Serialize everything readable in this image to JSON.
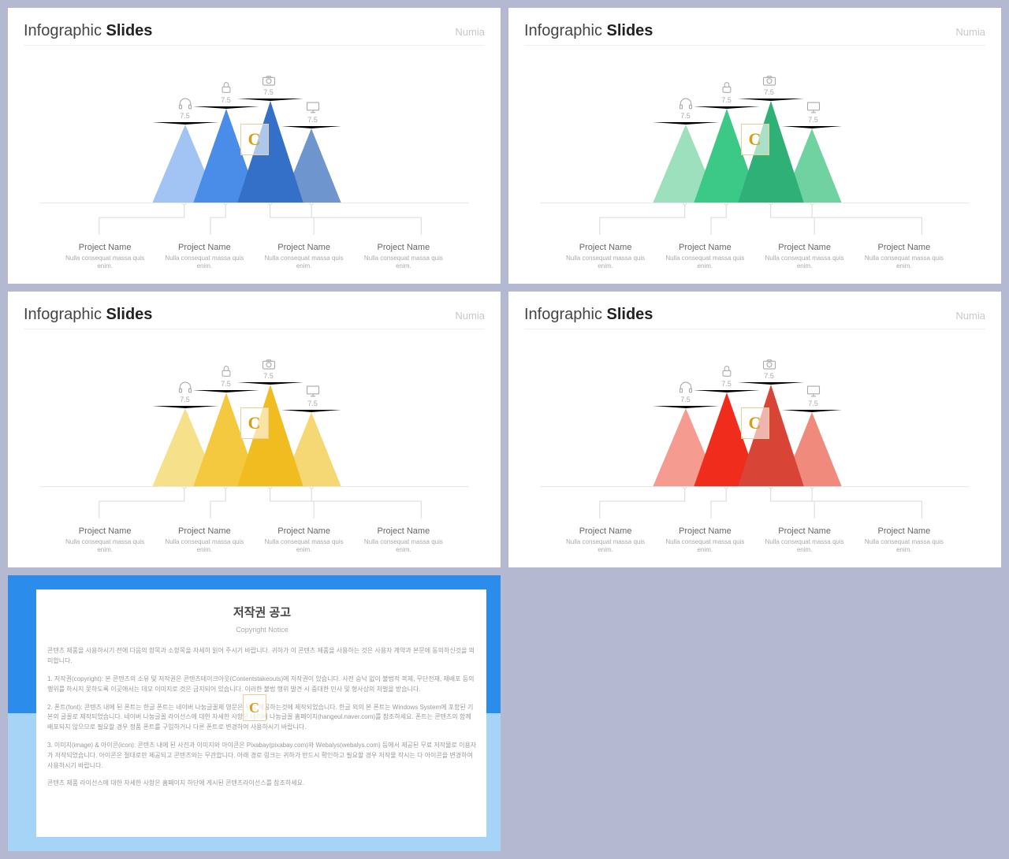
{
  "brand": "Numia",
  "title_prefix": "Infographic",
  "title_bold": "Slides",
  "watermark_letter": "C",
  "icons": [
    {
      "name": "headphones-icon",
      "value": "7.5"
    },
    {
      "name": "lock-icon",
      "value": "7.5"
    },
    {
      "name": "camera-icon",
      "value": "7.5"
    },
    {
      "name": "monitor-icon",
      "value": "7.5"
    }
  ],
  "labels": [
    {
      "title": "Project Name",
      "sub": "Nulla consequat massa quis enim."
    },
    {
      "title": "Project Name",
      "sub": "Nulla consequat massa quis enim."
    },
    {
      "title": "Project Name",
      "sub": "Nulla consequat massa quis enim."
    },
    {
      "title": "Project Name",
      "sub": "Nulla consequat massa quis enim."
    }
  ],
  "slides": [
    {
      "triangle_colors": [
        "#a2c4f5",
        "#4a8de8",
        "#3570c8",
        "#6f95cf"
      ],
      "triangle_heights": [
        100,
        120,
        130,
        95
      ],
      "triangle_widths": [
        42,
        42,
        42,
        38
      ],
      "triangle_x": [
        0,
        52,
        108,
        164
      ]
    },
    {
      "triangle_colors": [
        "#9de0be",
        "#3cc988",
        "#2fb076",
        "#6fd2a0"
      ],
      "triangle_heights": [
        100,
        120,
        130,
        95
      ],
      "triangle_widths": [
        42,
        42,
        42,
        38
      ],
      "triangle_x": [
        0,
        52,
        108,
        164
      ]
    },
    {
      "triangle_colors": [
        "#f7e08a",
        "#f5c93f",
        "#f0bc20",
        "#f5d873"
      ],
      "triangle_heights": [
        100,
        120,
        130,
        95
      ],
      "triangle_widths": [
        42,
        42,
        42,
        38
      ],
      "triangle_x": [
        0,
        52,
        108,
        164
      ]
    },
    {
      "triangle_colors": [
        "#f59b8f",
        "#f02d1c",
        "#d84435",
        "#f08a7d"
      ],
      "triangle_heights": [
        100,
        120,
        130,
        95
      ],
      "triangle_widths": [
        42,
        42,
        42,
        38
      ],
      "triangle_x": [
        0,
        52,
        108,
        164
      ]
    }
  ],
  "icon_positions_x": [
    34,
    86,
    140,
    196
  ],
  "icon_positions_y": [
    28,
    8,
    2,
    34
  ],
  "connector_color": "#d8d8d8",
  "label_title_color": "#666666",
  "label_sub_color": "#aaaaaa",
  "background_color": "#b4b8d0",
  "slide_bg": "#ffffff",
  "copyright": {
    "title": "저작권 공고",
    "subtitle": "Copyright Notice",
    "border_top_color": "#2b8ceb",
    "border_bottom_color": "#a6d4f7",
    "paragraphs": [
      "콘텐츠 제품을 사용하시기 전에 다음의 항목과 소항목을 자세히 읽어 주시기 바랍니다. 귀하가 이 콘텐츠 제품을 사용하는 것은 사용자 계약과 본문에 동의하신것을 의미합니다.",
      "1. 저작권(copyright): 본 콘텐츠의 소유 및 저작권은 콘텐츠테이크아웃(Contentstakeouts)에 저작권이 있습니다. 사전 승낙 없이 불법적 복제, 무단전재, 재배포 등의 행위를 하시지 못하도록 이곳에서는 데모 이미지로 것은 금지되어 있습니다. 이러한 불법 행위 발견 시 중대한 민사 및 형사상의 처벌을 받습니다.",
      "2. 폰트(font): 콘텐츠 내에 된 폰트는 한글 폰트는 네이버 나눔글꼴체 영문은 무료 제공하는것에 제작되었습니다. 한글 외의 본 폰트는 Windows System에 포함된 기본의 글꼴로 제작되었습니다. 네이버 나눔글꼴 라이선스에 대한 자세한 사항은 네이버 나눔글꼴 홈페이지(hangeul.naver.com)를 참조하세요. 폰트는 콘텐츠의 함께 배포되지 않으므로 필요할 경우 정품 폰트를 구입하거나 다른 폰트로 변경하여 사용하시기 바랍니다.",
      "3. 이미지(image) & 아이콘(icon): 콘텐츠 내에 된 사진과 이미지와 아이콘은 Pixabay(pixabay.com)와 Webalys(webalys.com) 등에서 제공된 무료 저작물로 이용자가 저작되었습니다. 아이콘은 절대로만 제공되고 콘텐츠와는 무관합니다. 아래 경로 링크는 귀하가 반드시 확인하고 필요할 경우 저작물 작시는 다 아이콘을 변경하여 사용하시기 바랍니다.",
      "콘텐츠 제품 라이선스에 대한 자세한 사항은 홈페이지 하단에 게시된 콘텐츠라이선스를 참조하세요."
    ]
  }
}
